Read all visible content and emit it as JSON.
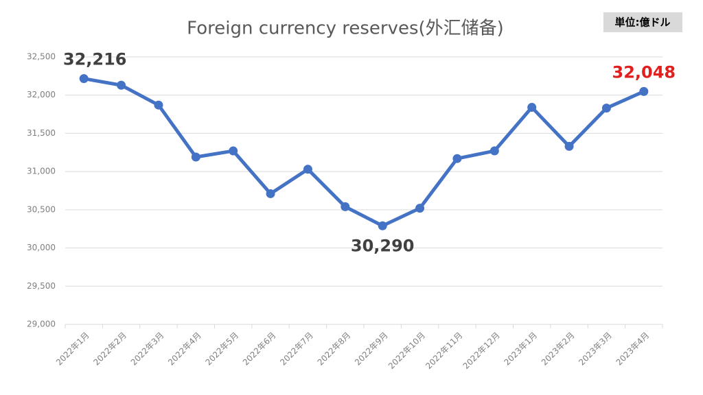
{
  "chart_data": {
    "type": "line",
    "title": "Foreign currency reserves(外汇储备)",
    "unit_label": "単位:億ドル",
    "categories": [
      "2022年1月",
      "2022年2月",
      "2022年3月",
      "2022年4月",
      "2022年5月",
      "2022年6月",
      "2022年7月",
      "2022年8月",
      "2022年9月",
      "2022年10月",
      "2022年11月",
      "2022年12月",
      "2023年1月",
      "2023年2月",
      "2023年3月",
      "2023年4月"
    ],
    "series": [
      {
        "name": "Foreign currency reserves",
        "color": "#4472c4",
        "values": [
          32216,
          32130,
          31870,
          31190,
          31270,
          30710,
          31030,
          30540,
          30290,
          30520,
          31170,
          31270,
          31840,
          31330,
          31830,
          32048
        ],
        "value_labels": [
          "32,216",
          null,
          null,
          null,
          null,
          null,
          null,
          null,
          "30,290",
          null,
          null,
          null,
          null,
          null,
          null,
          "32,048"
        ],
        "value_label_colors": [
          "#404040",
          null,
          null,
          null,
          null,
          null,
          null,
          null,
          "#404040",
          null,
          null,
          null,
          null,
          null,
          null,
          "#e0201e"
        ]
      }
    ],
    "ylim": [
      29000,
      32500
    ],
    "yticks": [
      {
        "value": 29000,
        "label": "29,000"
      },
      {
        "value": 29500,
        "label": "29,500"
      },
      {
        "value": 30000,
        "label": "30,000"
      },
      {
        "value": 30500,
        "label": "30,500"
      },
      {
        "value": 31000,
        "label": "31,000"
      },
      {
        "value": 31500,
        "label": "31,500"
      },
      {
        "value": 32000,
        "label": "32,000"
      },
      {
        "value": 32500,
        "label": "32,500"
      }
    ],
    "grid": true
  }
}
